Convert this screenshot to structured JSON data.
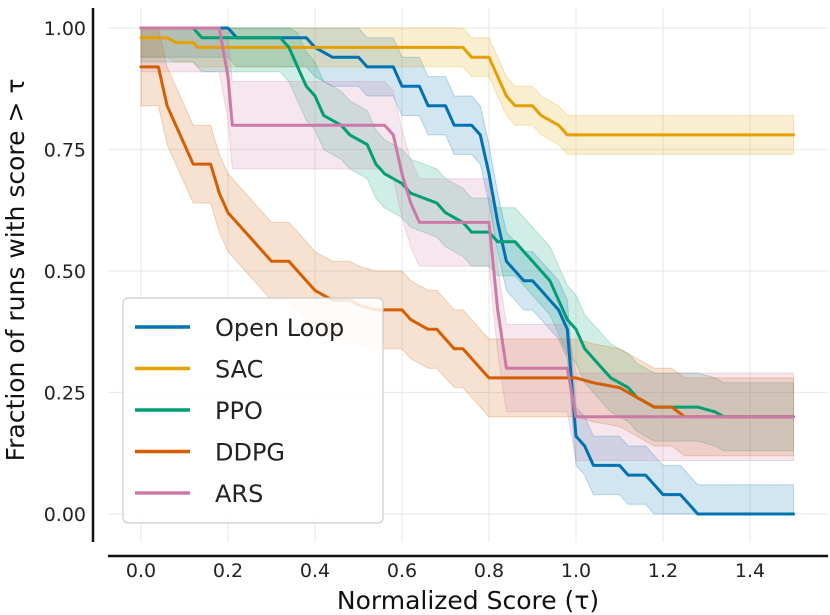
{
  "chart_data": {
    "type": "line",
    "title": "",
    "xlabel": "Normalized Score (τ)",
    "ylabel": "Fraction of runs with score > τ",
    "xlim": [
      -0.08,
      1.58
    ],
    "ylim": [
      -0.03,
      1.03
    ],
    "grid": true,
    "x_ticks": [
      0.0,
      0.2,
      0.4,
      0.6,
      0.8,
      1.0,
      1.2,
      1.4
    ],
    "x_tick_labels": [
      "0.0",
      "0.2",
      "0.4",
      "0.6",
      "0.8",
      "1.0",
      "1.2",
      "1.4"
    ],
    "y_ticks": [
      0.0,
      0.25,
      0.5,
      0.75,
      1.0
    ],
    "y_tick_labels": [
      "0.00",
      "0.25",
      "0.50",
      "0.75",
      "1.00"
    ],
    "legend_position": "bottom-left",
    "series": [
      {
        "name": "Open Loop",
        "color": "#0072b2",
        "band": 0.06,
        "points": [
          [
            0.0,
            1.0
          ],
          [
            0.2,
            1.0
          ],
          [
            0.22,
            0.98
          ],
          [
            0.38,
            0.98
          ],
          [
            0.4,
            0.96
          ],
          [
            0.44,
            0.94
          ],
          [
            0.5,
            0.94
          ],
          [
            0.52,
            0.92
          ],
          [
            0.58,
            0.92
          ],
          [
            0.6,
            0.88
          ],
          [
            0.64,
            0.88
          ],
          [
            0.66,
            0.84
          ],
          [
            0.7,
            0.84
          ],
          [
            0.72,
            0.8
          ],
          [
            0.76,
            0.8
          ],
          [
            0.78,
            0.78
          ],
          [
            0.8,
            0.7
          ],
          [
            0.82,
            0.6
          ],
          [
            0.84,
            0.52
          ],
          [
            0.86,
            0.5
          ],
          [
            0.88,
            0.48
          ],
          [
            0.9,
            0.48
          ],
          [
            0.92,
            0.46
          ],
          [
            0.94,
            0.44
          ],
          [
            0.96,
            0.42
          ],
          [
            0.98,
            0.38
          ],
          [
            1.0,
            0.16
          ],
          [
            1.02,
            0.14
          ],
          [
            1.04,
            0.1
          ],
          [
            1.1,
            0.1
          ],
          [
            1.12,
            0.08
          ],
          [
            1.16,
            0.08
          ],
          [
            1.18,
            0.06
          ],
          [
            1.2,
            0.04
          ],
          [
            1.24,
            0.04
          ],
          [
            1.26,
            0.02
          ],
          [
            1.28,
            0.0
          ],
          [
            1.5,
            0.0
          ]
        ]
      },
      {
        "name": "SAC",
        "color": "#e69f00",
        "band": 0.04,
        "points": [
          [
            0.0,
            0.98
          ],
          [
            0.06,
            0.98
          ],
          [
            0.08,
            0.97
          ],
          [
            0.12,
            0.97
          ],
          [
            0.13,
            0.96
          ],
          [
            0.74,
            0.96
          ],
          [
            0.76,
            0.94
          ],
          [
            0.8,
            0.94
          ],
          [
            0.82,
            0.9
          ],
          [
            0.84,
            0.86
          ],
          [
            0.86,
            0.84
          ],
          [
            0.9,
            0.84
          ],
          [
            0.92,
            0.82
          ],
          [
            0.96,
            0.8
          ],
          [
            0.98,
            0.78
          ],
          [
            1.5,
            0.78
          ]
        ]
      },
      {
        "name": "PPO",
        "color": "#009e73",
        "band": 0.07,
        "points": [
          [
            0.0,
            1.0
          ],
          [
            0.12,
            1.0
          ],
          [
            0.14,
            0.98
          ],
          [
            0.32,
            0.98
          ],
          [
            0.34,
            0.96
          ],
          [
            0.36,
            0.92
          ],
          [
            0.38,
            0.88
          ],
          [
            0.4,
            0.86
          ],
          [
            0.42,
            0.82
          ],
          [
            0.46,
            0.8
          ],
          [
            0.48,
            0.78
          ],
          [
            0.52,
            0.76
          ],
          [
            0.54,
            0.72
          ],
          [
            0.56,
            0.7
          ],
          [
            0.6,
            0.68
          ],
          [
            0.62,
            0.66
          ],
          [
            0.68,
            0.64
          ],
          [
            0.7,
            0.62
          ],
          [
            0.74,
            0.6
          ],
          [
            0.76,
            0.58
          ],
          [
            0.8,
            0.58
          ],
          [
            0.82,
            0.56
          ],
          [
            0.86,
            0.56
          ],
          [
            0.88,
            0.54
          ],
          [
            0.9,
            0.52
          ],
          [
            0.92,
            0.5
          ],
          [
            0.94,
            0.48
          ],
          [
            0.96,
            0.44
          ],
          [
            0.98,
            0.4
          ],
          [
            1.0,
            0.38
          ],
          [
            1.02,
            0.34
          ],
          [
            1.04,
            0.32
          ],
          [
            1.06,
            0.3
          ],
          [
            1.08,
            0.28
          ],
          [
            1.12,
            0.26
          ],
          [
            1.14,
            0.24
          ],
          [
            1.16,
            0.23
          ],
          [
            1.18,
            0.22
          ],
          [
            1.24,
            0.22
          ],
          [
            1.26,
            0.22
          ],
          [
            1.28,
            0.22
          ],
          [
            1.32,
            0.21
          ],
          [
            1.34,
            0.2
          ],
          [
            1.5,
            0.2
          ]
        ]
      },
      {
        "name": "DDPG",
        "color": "#d55e00",
        "band": 0.08,
        "points": [
          [
            0.0,
            0.92
          ],
          [
            0.04,
            0.92
          ],
          [
            0.06,
            0.84
          ],
          [
            0.08,
            0.8
          ],
          [
            0.1,
            0.76
          ],
          [
            0.12,
            0.72
          ],
          [
            0.16,
            0.72
          ],
          [
            0.18,
            0.66
          ],
          [
            0.2,
            0.62
          ],
          [
            0.22,
            0.6
          ],
          [
            0.24,
            0.58
          ],
          [
            0.26,
            0.56
          ],
          [
            0.28,
            0.54
          ],
          [
            0.3,
            0.52
          ],
          [
            0.34,
            0.52
          ],
          [
            0.36,
            0.5
          ],
          [
            0.38,
            0.48
          ],
          [
            0.4,
            0.46
          ],
          [
            0.44,
            0.44
          ],
          [
            0.48,
            0.44
          ],
          [
            0.5,
            0.43
          ],
          [
            0.54,
            0.42
          ],
          [
            0.58,
            0.42
          ],
          [
            0.6,
            0.42
          ],
          [
            0.62,
            0.4
          ],
          [
            0.66,
            0.38
          ],
          [
            0.68,
            0.38
          ],
          [
            0.7,
            0.36
          ],
          [
            0.72,
            0.34
          ],
          [
            0.74,
            0.34
          ],
          [
            0.76,
            0.32
          ],
          [
            0.78,
            0.3
          ],
          [
            0.8,
            0.28
          ],
          [
            0.96,
            0.28
          ],
          [
            1.0,
            0.28
          ],
          [
            1.04,
            0.27
          ],
          [
            1.1,
            0.26
          ],
          [
            1.14,
            0.24
          ],
          [
            1.18,
            0.22
          ],
          [
            1.22,
            0.22
          ],
          [
            1.25,
            0.2
          ],
          [
            1.3,
            0.2
          ],
          [
            1.5,
            0.2
          ]
        ]
      },
      {
        "name": "ARS",
        "color": "#cc79a7",
        "band": 0.09,
        "points": [
          [
            0.0,
            1.0
          ],
          [
            0.18,
            1.0
          ],
          [
            0.2,
            0.9
          ],
          [
            0.21,
            0.8
          ],
          [
            0.56,
            0.8
          ],
          [
            0.58,
            0.78
          ],
          [
            0.6,
            0.7
          ],
          [
            0.62,
            0.64
          ],
          [
            0.64,
            0.6
          ],
          [
            0.8,
            0.6
          ],
          [
            0.82,
            0.42
          ],
          [
            0.84,
            0.3
          ],
          [
            0.98,
            0.3
          ],
          [
            1.0,
            0.2
          ],
          [
            1.5,
            0.2
          ]
        ]
      }
    ]
  }
}
